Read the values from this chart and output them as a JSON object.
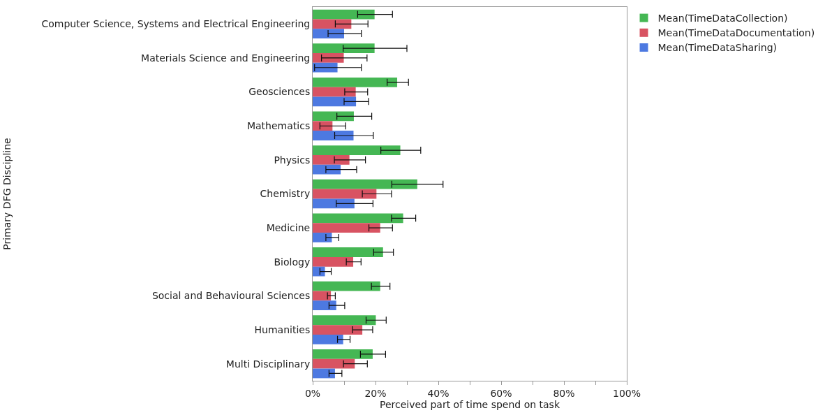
{
  "chart_data": {
    "type": "bar",
    "orientation": "horizontal",
    "xlabel": "Perceived part of time spend on task",
    "ylabel": "Primary DFG Discipline",
    "categories": [
      "Computer Science, Systems and Electrical Engineering",
      "Materials Science and Engineering",
      "Geosciences",
      "Mathematics",
      "Physics",
      "Chemistry",
      "Medicine",
      "Biology",
      "Social and Behavioural Sciences",
      "Humanities",
      "Multi Disciplinary"
    ],
    "series": [
      {
        "name": "Mean(TimeDataCollection)",
        "color": "#3cb44b",
        "values": [
          19.7,
          19.7,
          26.9,
          13.1,
          27.9,
          33.3,
          28.8,
          22.4,
          21.5,
          20.1,
          19.1
        ],
        "errors": [
          [
            14.3,
            25.4
          ],
          [
            9.7,
            30.0
          ],
          [
            23.7,
            30.5
          ],
          [
            7.7,
            18.8
          ],
          [
            21.7,
            34.4
          ],
          [
            25.2,
            41.5
          ],
          [
            25.1,
            32.8
          ],
          [
            19.4,
            25.7
          ],
          [
            18.7,
            24.6
          ],
          [
            17.0,
            23.4
          ],
          [
            15.2,
            23.2
          ]
        ]
      },
      {
        "name": "Mean(TimeDataDocumentation)",
        "color": "#d64a5a",
        "values": [
          12.3,
          9.9,
          13.7,
          6.3,
          11.7,
          20.3,
          21.5,
          12.9,
          5.8,
          15.8,
          13.4
        ],
        "errors": [
          [
            7.2,
            17.6
          ],
          [
            2.8,
            17.3
          ],
          [
            10.2,
            17.5
          ],
          [
            2.3,
            10.5
          ],
          [
            6.9,
            16.8
          ],
          [
            15.8,
            25.1
          ],
          [
            17.9,
            25.4
          ],
          [
            10.7,
            15.4
          ],
          [
            4.7,
            7.2
          ],
          [
            12.7,
            19.1
          ],
          [
            9.8,
            17.4
          ]
        ]
      },
      {
        "name": "Mean(TimeDataSharing)",
        "color": "#4472e0",
        "values": [
          10.0,
          7.9,
          13.8,
          13.0,
          8.9,
          13.3,
          6.1,
          3.9,
          7.5,
          9.7,
          7.1
        ],
        "errors": [
          [
            4.9,
            15.5
          ],
          [
            0.6,
            15.5
          ],
          [
            10.0,
            17.8
          ],
          [
            7.0,
            19.3
          ],
          [
            4.2,
            14.0
          ],
          [
            7.5,
            19.2
          ],
          [
            4.2,
            8.3
          ],
          [
            2.3,
            5.9
          ],
          [
            5.2,
            10.2
          ],
          [
            7.9,
            11.9
          ],
          [
            5.2,
            9.3
          ]
        ]
      }
    ],
    "xlim": [
      0,
      100
    ],
    "xticks": [
      {
        "value": 0,
        "label": "0%"
      },
      {
        "value": 10,
        "label": null
      },
      {
        "value": 20,
        "label": "20%"
      },
      {
        "value": 30,
        "label": null
      },
      {
        "value": 40,
        "label": "40%"
      },
      {
        "value": 50,
        "label": null
      },
      {
        "value": 60,
        "label": "60%"
      },
      {
        "value": 70,
        "label": null
      },
      {
        "value": 80,
        "label": "80%"
      },
      {
        "value": 90,
        "label": null
      },
      {
        "value": 100,
        "label": "100%"
      }
    ],
    "grid": false,
    "legend": "top right"
  }
}
